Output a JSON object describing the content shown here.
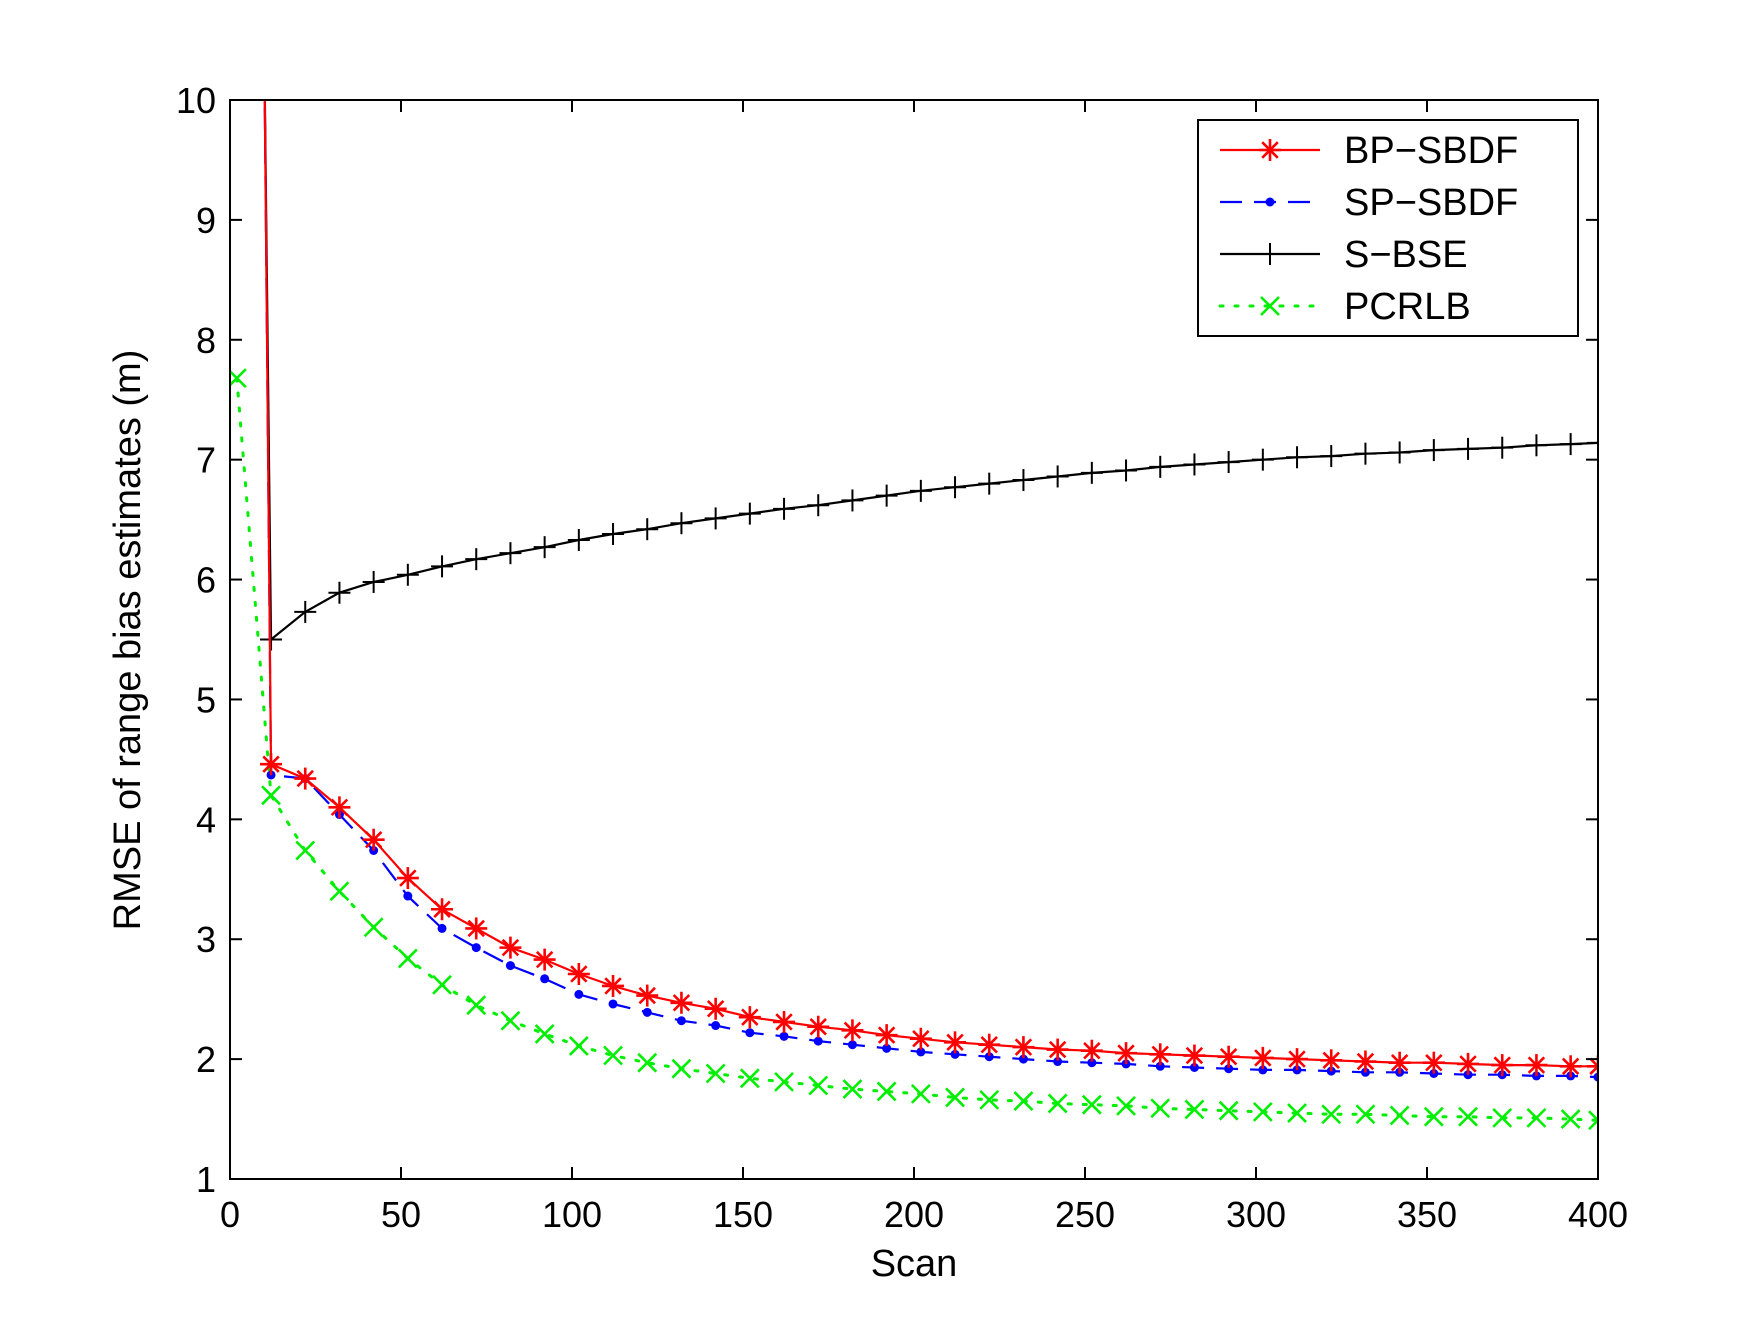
{
  "chart_data": {
    "type": "line",
    "title": "",
    "xlabel": "Scan",
    "ylabel": "RMSE of range bias estimates (m)",
    "xlim": [
      0,
      400
    ],
    "ylim": [
      1,
      10
    ],
    "xticks": [
      0,
      50,
      100,
      150,
      200,
      250,
      300,
      350,
      400
    ],
    "yticks": [
      1,
      2,
      3,
      4,
      5,
      6,
      7,
      8,
      9,
      10
    ],
    "grid": false,
    "legend": "top-right",
    "series": [
      {
        "name": "BP−SBDF",
        "color": "#ff0000",
        "line": "solid",
        "marker": "asterisk",
        "x": [
          10,
          12,
          22,
          32,
          42,
          52,
          62,
          72,
          82,
          92,
          102,
          112,
          122,
          132,
          142,
          152,
          162,
          172,
          182,
          192,
          202,
          212,
          222,
          232,
          242,
          252,
          262,
          272,
          282,
          292,
          302,
          312,
          322,
          332,
          342,
          352,
          362,
          372,
          382,
          392,
          400
        ],
        "y": [
          10.5,
          4.46,
          4.34,
          4.1,
          3.83,
          3.51,
          3.25,
          3.09,
          2.93,
          2.83,
          2.71,
          2.61,
          2.53,
          2.47,
          2.42,
          2.35,
          2.31,
          2.27,
          2.24,
          2.2,
          2.17,
          2.14,
          2.12,
          2.1,
          2.08,
          2.07,
          2.05,
          2.04,
          2.03,
          2.02,
          2.01,
          2.0,
          1.99,
          1.98,
          1.97,
          1.97,
          1.96,
          1.95,
          1.95,
          1.94,
          1.94
        ]
      },
      {
        "name": "SP−SBDF",
        "color": "#0000ff",
        "line": "dashed",
        "marker": "dot",
        "x": [
          10,
          12,
          22,
          32,
          42,
          52,
          62,
          72,
          82,
          92,
          102,
          112,
          122,
          132,
          142,
          152,
          162,
          172,
          182,
          192,
          202,
          212,
          222,
          232,
          242,
          252,
          262,
          272,
          282,
          292,
          302,
          312,
          322,
          332,
          342,
          352,
          362,
          372,
          382,
          392,
          400
        ],
        "y": [
          10.5,
          4.37,
          4.34,
          4.04,
          3.74,
          3.36,
          3.09,
          2.93,
          2.78,
          2.67,
          2.54,
          2.46,
          2.39,
          2.32,
          2.28,
          2.22,
          2.19,
          2.15,
          2.12,
          2.09,
          2.06,
          2.04,
          2.02,
          2.0,
          1.98,
          1.97,
          1.96,
          1.94,
          1.93,
          1.92,
          1.91,
          1.91,
          1.9,
          1.89,
          1.89,
          1.88,
          1.87,
          1.87,
          1.86,
          1.86,
          1.85
        ]
      },
      {
        "name": "S−BSE",
        "color": "#000000",
        "line": "solid",
        "marker": "plus",
        "x": [
          10,
          12,
          22,
          32,
          42,
          52,
          62,
          72,
          82,
          92,
          102,
          112,
          122,
          132,
          142,
          152,
          162,
          172,
          182,
          192,
          202,
          212,
          222,
          232,
          242,
          252,
          262,
          272,
          282,
          292,
          302,
          312,
          322,
          332,
          342,
          352,
          362,
          372,
          382,
          392,
          400
        ],
        "y": [
          10.5,
          5.5,
          5.73,
          5.89,
          5.98,
          6.04,
          6.11,
          6.17,
          6.22,
          6.27,
          6.33,
          6.38,
          6.42,
          6.47,
          6.51,
          6.55,
          6.59,
          6.62,
          6.66,
          6.7,
          6.74,
          6.77,
          6.8,
          6.83,
          6.86,
          6.89,
          6.91,
          6.94,
          6.96,
          6.98,
          7.0,
          7.02,
          7.03,
          7.05,
          7.06,
          7.08,
          7.09,
          7.1,
          7.12,
          7.13,
          7.14
        ]
      },
      {
        "name": "PCRLB",
        "color": "#00ee00",
        "line": "dotted",
        "marker": "x",
        "x": [
          2,
          12,
          22,
          32,
          42,
          52,
          62,
          72,
          82,
          92,
          102,
          112,
          122,
          132,
          142,
          152,
          162,
          172,
          182,
          192,
          202,
          212,
          222,
          232,
          242,
          252,
          262,
          272,
          282,
          292,
          302,
          312,
          322,
          332,
          342,
          352,
          362,
          372,
          382,
          392,
          400
        ],
        "y": [
          7.68,
          4.2,
          3.74,
          3.4,
          3.1,
          2.84,
          2.62,
          2.45,
          2.32,
          2.21,
          2.11,
          2.03,
          1.97,
          1.92,
          1.88,
          1.84,
          1.81,
          1.78,
          1.75,
          1.73,
          1.71,
          1.68,
          1.66,
          1.65,
          1.63,
          1.62,
          1.61,
          1.59,
          1.58,
          1.57,
          1.56,
          1.55,
          1.54,
          1.54,
          1.53,
          1.52,
          1.52,
          1.51,
          1.51,
          1.5,
          1.49
        ]
      }
    ]
  }
}
